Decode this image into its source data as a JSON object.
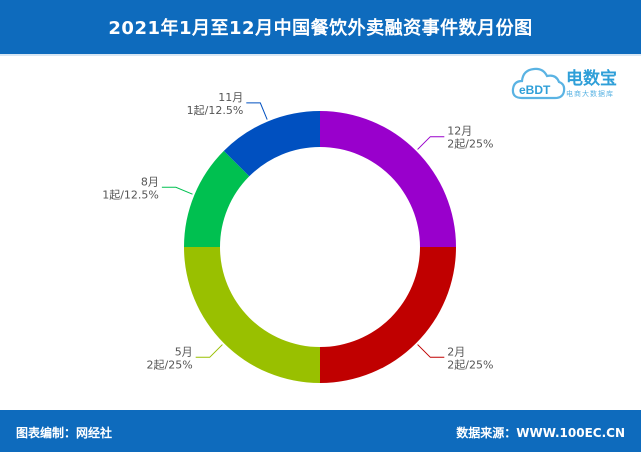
{
  "header": {
    "title": "2021年1月至12月中国餐饮外卖融资事件数月份图"
  },
  "footer": {
    "left": "图表编制：网经社",
    "right": "数据来源：WWW.100EC.CN"
  },
  "logo": {
    "main": "电数宝",
    "sub": "电商大数据库",
    "mark": "eBDT",
    "color": "#2f9fd8"
  },
  "chart_data": {
    "type": "pie",
    "variant": "donut",
    "title": "2021年1月至12月中国餐饮外卖融资事件数月份图",
    "categories": [
      "12月",
      "2月",
      "5月",
      "8月",
      "11月"
    ],
    "values": [
      2,
      2,
      2,
      1,
      1
    ],
    "value_labels": [
      "2起/25%",
      "2起/25%",
      "2起/25%",
      "1起/12.5%",
      "1起/12.5%"
    ],
    "colors": [
      "#9900cc",
      "#c00000",
      "#99c000",
      "#00c050",
      "#0050c0"
    ],
    "legend": "none"
  }
}
